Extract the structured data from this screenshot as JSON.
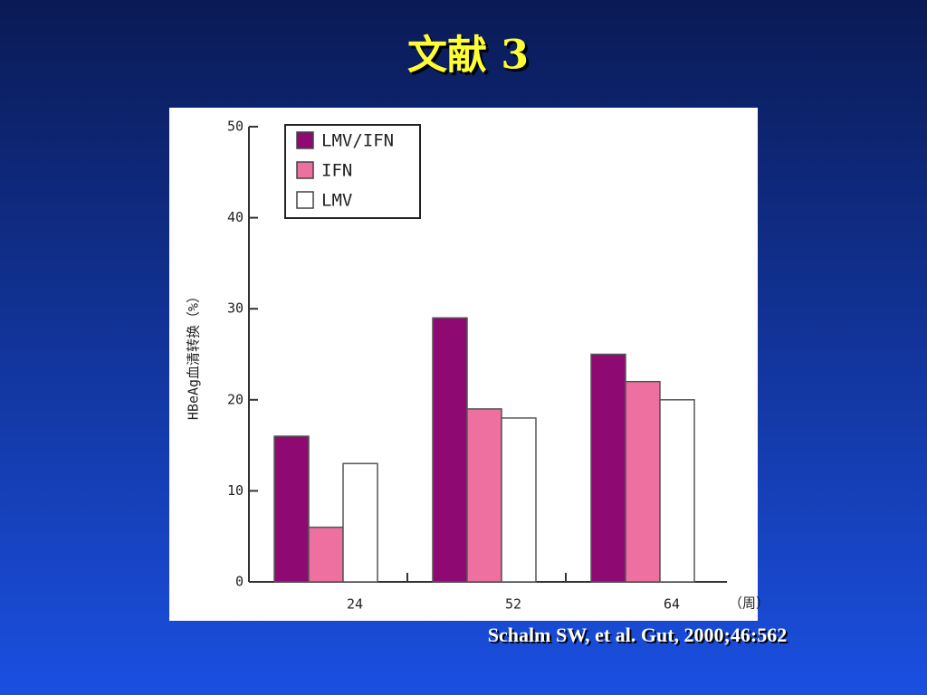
{
  "chart_data": {
    "type": "bar",
    "title": "文献 3",
    "source": "Schalm SW, et al. Gut, 2000;46:562",
    "y_label": "HBeAg血清转换（%）",
    "x_label": "（周）",
    "categories": [
      "24",
      "52",
      "64"
    ],
    "series": [
      {
        "name": "LMV/IFN",
        "color": "#8e0a72",
        "values": [
          16,
          29,
          25
        ]
      },
      {
        "name": "IFN",
        "color": "#ee70a0",
        "values": [
          6,
          19,
          22
        ]
      },
      {
        "name": "LMV",
        "color": "#ffffff",
        "values": [
          13,
          18,
          20
        ]
      }
    ],
    "ylim": [
      0,
      50
    ],
    "yticks": [
      0,
      10,
      20,
      30,
      40,
      50
    ],
    "legend": "upper left"
  }
}
